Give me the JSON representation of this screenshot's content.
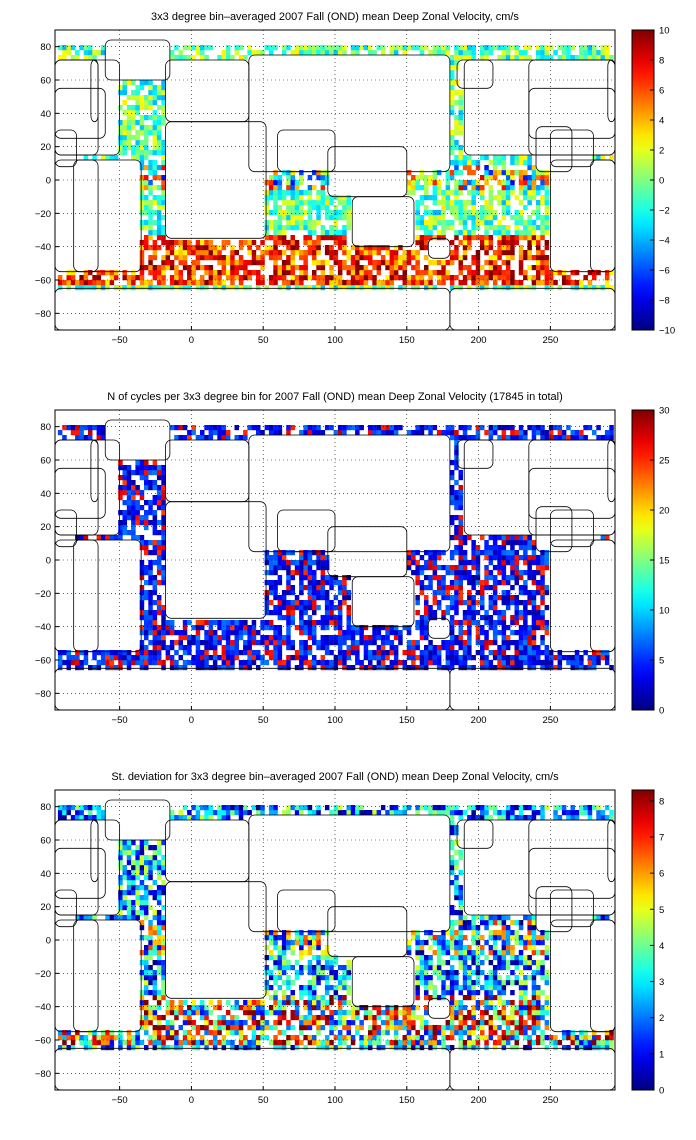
{
  "chart_data": [
    {
      "type": "heatmap",
      "title": "3x3 degree bin–averaged 2007 Fall (OND) mean Deep Zonal Velocity, cm/s",
      "xlim": [
        -95,
        295
      ],
      "ylim": [
        -90,
        90
      ],
      "xticks": [
        -50,
        0,
        50,
        100,
        150,
        200,
        250
      ],
      "yticks": [
        80,
        60,
        40,
        20,
        0,
        -20,
        -40,
        -60,
        -80
      ],
      "colorbar": {
        "min": -10,
        "max": 10,
        "ticks": [
          10,
          8,
          6,
          4,
          2,
          0,
          -2,
          -4,
          -6,
          -8,
          -10
        ],
        "colormap": "jet"
      },
      "grid": true,
      "field": "zonal_velocity"
    },
    {
      "type": "heatmap",
      "title": "N of cycles per 3x3 degree bin for 2007 Fall (OND) mean Deep Zonal Velocity (17845 in total)",
      "xlim": [
        -95,
        295
      ],
      "ylim": [
        -90,
        90
      ],
      "xticks": [
        -50,
        0,
        50,
        100,
        150,
        200,
        250
      ],
      "yticks": [
        80,
        60,
        40,
        20,
        0,
        -20,
        -40,
        -60,
        -80
      ],
      "colorbar": {
        "min": 0,
        "max": 30,
        "ticks": [
          30,
          25,
          20,
          15,
          10,
          5,
          0
        ],
        "colormap": "jet"
      },
      "grid": true,
      "field": "cycle_count"
    },
    {
      "type": "heatmap",
      "title": "St. deviation for 3x3 degree bin–averaged 2007 Fall (OND) mean Deep Zonal Velocity, cm/s",
      "xlim": [
        -95,
        295
      ],
      "ylim": [
        -90,
        90
      ],
      "xticks": [
        -50,
        0,
        50,
        100,
        150,
        200,
        250
      ],
      "yticks": [
        80,
        60,
        40,
        20,
        0,
        -20,
        -40,
        -60,
        -80
      ],
      "colorbar": {
        "min": 0,
        "max": 8.3,
        "ticks": [
          8,
          7,
          6,
          5,
          4,
          3,
          2,
          1,
          0
        ],
        "colormap": "jet"
      },
      "grid": true,
      "field": "std_deviation"
    }
  ]
}
